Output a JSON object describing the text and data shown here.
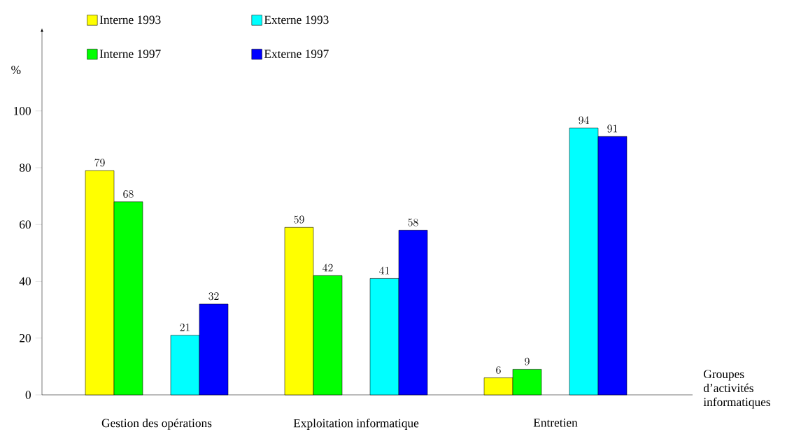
{
  "chart_data": {
    "type": "bar",
    "ylabel": "%",
    "xlabel": "Groupes d’activités informatiques",
    "categories": [
      "Gestion des opérations",
      "Exploitation informatique",
      "Entretien"
    ],
    "series": [
      {
        "name": "Interne 1993",
        "color": "#ffff00",
        "values": [
          79,
          59,
          6
        ]
      },
      {
        "name": "Interne 1997",
        "color": "#00ff00",
        "values": [
          68,
          42,
          9
        ]
      },
      {
        "name": "Externe 1993",
        "color": "#00ffff",
        "values": [
          21,
          41,
          94
        ]
      },
      {
        "name": "Externe 1997",
        "color": "#0000ff",
        "values": [
          32,
          58,
          91
        ]
      }
    ],
    "ylim": [
      0,
      128
    ],
    "yticks": [
      0,
      20,
      40,
      60,
      80,
      100
    ],
    "data_labels": true,
    "legend": "top left",
    "grid": false
  }
}
